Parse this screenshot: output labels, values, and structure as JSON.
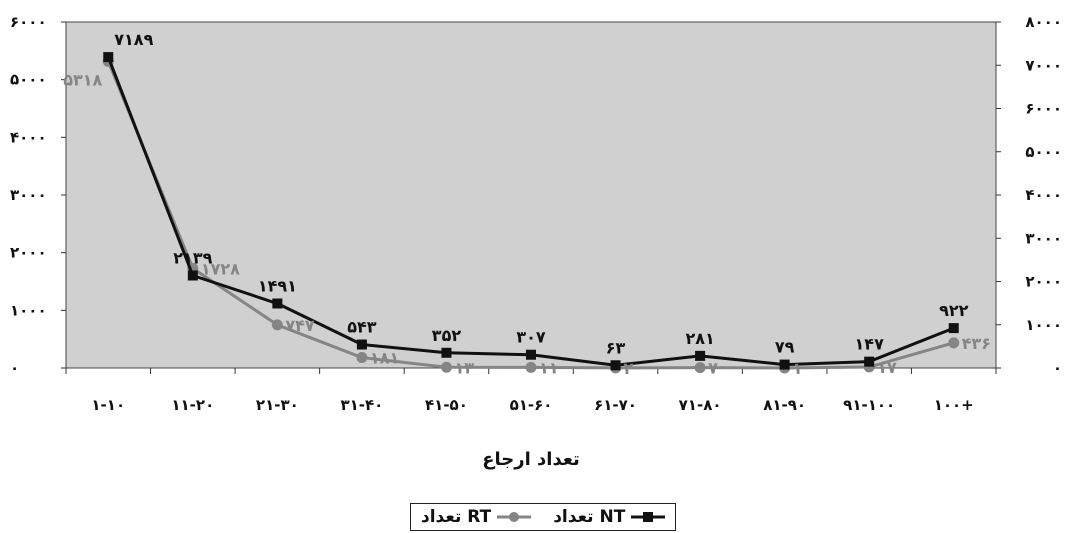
{
  "chart_data": {
    "type": "line",
    "categories": [
      "۱-۱۰",
      "۱۱-۲۰",
      "۲۱-۳۰",
      "۳۱-۴۰",
      "۴۱-۵۰",
      "۵۱-۶۰",
      "۶۱-۷۰",
      "۷۱-۸۰",
      "۸۱-۹۰",
      "۹۱-۱۰۰",
      "۱۰۰+"
    ],
    "xlabel": "تعداد ارجاع",
    "left_axis": {
      "range": [
        0,
        6000
      ],
      "ticks": [
        "۰",
        "۱۰۰۰",
        "۲۰۰۰",
        "۳۰۰۰",
        "۴۰۰۰",
        "۵۰۰۰",
        "۶۰۰۰"
      ]
    },
    "right_axis": {
      "range": [
        0,
        8000
      ],
      "ticks": [
        "۰",
        "۱۰۰۰",
        "۲۰۰۰",
        "۳۰۰۰",
        "۴۰۰۰",
        "۵۰۰۰",
        "۶۰۰۰",
        "۷۰۰۰",
        "۸۰۰۰"
      ]
    },
    "legend_placement": "bottom",
    "plot_background": "#d0d0d0",
    "series": [
      {
        "name": "تعداد NT",
        "axis": "right",
        "marker": "square",
        "color": "#111111",
        "values": [
          7189,
          2139,
          1491,
          543,
          352,
          307,
          63,
          281,
          79,
          147,
          922
        ],
        "labels": [
          "۷۱۸۹",
          "۲۱۳۹",
          "۱۴۹۱",
          "۵۴۳",
          "۳۵۲",
          "۳۰۷",
          "۶۳",
          "۲۸۱",
          "۷۹",
          "۱۴۷",
          "۹۲۲"
        ]
      },
      {
        "name": "تعداد RT",
        "axis": "left",
        "marker": "circle",
        "color": "#858585",
        "values": [
          5318,
          1728,
          747,
          181,
          13,
          11,
          2,
          7,
          1,
          17,
          436
        ],
        "labels": [
          "۵۳۱۸",
          "۱۷۲۸",
          "۷۴۷",
          "۱۸۱",
          "۱۳",
          "۱۱",
          "۲",
          "۷",
          "۱",
          "۱۷",
          "۴۳۶"
        ]
      }
    ]
  }
}
